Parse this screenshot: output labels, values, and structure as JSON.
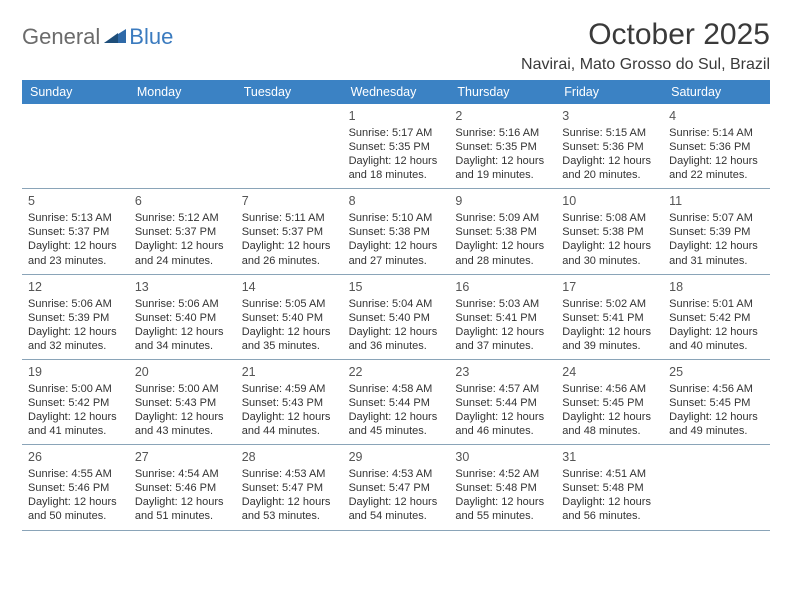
{
  "branding": {
    "logo_part1": "General",
    "logo_part2": "Blue",
    "logo_shape_color": "#2f6aa8"
  },
  "header": {
    "title": "October 2025",
    "location": "Navirai, Mato Grosso do Sul, Brazil"
  },
  "calendar": {
    "day_header_bg": "#3b82c4",
    "day_header_text_color": "#ffffff",
    "border_color": "#8aa4b8",
    "day_names": [
      "Sunday",
      "Monday",
      "Tuesday",
      "Wednesday",
      "Thursday",
      "Friday",
      "Saturday"
    ],
    "weeks": [
      [
        null,
        null,
        null,
        {
          "num": "1",
          "sunrise": "Sunrise: 5:17 AM",
          "sunset": "Sunset: 5:35 PM",
          "daylight": "Daylight: 12 hours and 18 minutes."
        },
        {
          "num": "2",
          "sunrise": "Sunrise: 5:16 AM",
          "sunset": "Sunset: 5:35 PM",
          "daylight": "Daylight: 12 hours and 19 minutes."
        },
        {
          "num": "3",
          "sunrise": "Sunrise: 5:15 AM",
          "sunset": "Sunset: 5:36 PM",
          "daylight": "Daylight: 12 hours and 20 minutes."
        },
        {
          "num": "4",
          "sunrise": "Sunrise: 5:14 AM",
          "sunset": "Sunset: 5:36 PM",
          "daylight": "Daylight: 12 hours and 22 minutes."
        }
      ],
      [
        {
          "num": "5",
          "sunrise": "Sunrise: 5:13 AM",
          "sunset": "Sunset: 5:37 PM",
          "daylight": "Daylight: 12 hours and 23 minutes."
        },
        {
          "num": "6",
          "sunrise": "Sunrise: 5:12 AM",
          "sunset": "Sunset: 5:37 PM",
          "daylight": "Daylight: 12 hours and 24 minutes."
        },
        {
          "num": "7",
          "sunrise": "Sunrise: 5:11 AM",
          "sunset": "Sunset: 5:37 PM",
          "daylight": "Daylight: 12 hours and 26 minutes."
        },
        {
          "num": "8",
          "sunrise": "Sunrise: 5:10 AM",
          "sunset": "Sunset: 5:38 PM",
          "daylight": "Daylight: 12 hours and 27 minutes."
        },
        {
          "num": "9",
          "sunrise": "Sunrise: 5:09 AM",
          "sunset": "Sunset: 5:38 PM",
          "daylight": "Daylight: 12 hours and 28 minutes."
        },
        {
          "num": "10",
          "sunrise": "Sunrise: 5:08 AM",
          "sunset": "Sunset: 5:38 PM",
          "daylight": "Daylight: 12 hours and 30 minutes."
        },
        {
          "num": "11",
          "sunrise": "Sunrise: 5:07 AM",
          "sunset": "Sunset: 5:39 PM",
          "daylight": "Daylight: 12 hours and 31 minutes."
        }
      ],
      [
        {
          "num": "12",
          "sunrise": "Sunrise: 5:06 AM",
          "sunset": "Sunset: 5:39 PM",
          "daylight": "Daylight: 12 hours and 32 minutes."
        },
        {
          "num": "13",
          "sunrise": "Sunrise: 5:06 AM",
          "sunset": "Sunset: 5:40 PM",
          "daylight": "Daylight: 12 hours and 34 minutes."
        },
        {
          "num": "14",
          "sunrise": "Sunrise: 5:05 AM",
          "sunset": "Sunset: 5:40 PM",
          "daylight": "Daylight: 12 hours and 35 minutes."
        },
        {
          "num": "15",
          "sunrise": "Sunrise: 5:04 AM",
          "sunset": "Sunset: 5:40 PM",
          "daylight": "Daylight: 12 hours and 36 minutes."
        },
        {
          "num": "16",
          "sunrise": "Sunrise: 5:03 AM",
          "sunset": "Sunset: 5:41 PM",
          "daylight": "Daylight: 12 hours and 37 minutes."
        },
        {
          "num": "17",
          "sunrise": "Sunrise: 5:02 AM",
          "sunset": "Sunset: 5:41 PM",
          "daylight": "Daylight: 12 hours and 39 minutes."
        },
        {
          "num": "18",
          "sunrise": "Sunrise: 5:01 AM",
          "sunset": "Sunset: 5:42 PM",
          "daylight": "Daylight: 12 hours and 40 minutes."
        }
      ],
      [
        {
          "num": "19",
          "sunrise": "Sunrise: 5:00 AM",
          "sunset": "Sunset: 5:42 PM",
          "daylight": "Daylight: 12 hours and 41 minutes."
        },
        {
          "num": "20",
          "sunrise": "Sunrise: 5:00 AM",
          "sunset": "Sunset: 5:43 PM",
          "daylight": "Daylight: 12 hours and 43 minutes."
        },
        {
          "num": "21",
          "sunrise": "Sunrise: 4:59 AM",
          "sunset": "Sunset: 5:43 PM",
          "daylight": "Daylight: 12 hours and 44 minutes."
        },
        {
          "num": "22",
          "sunrise": "Sunrise: 4:58 AM",
          "sunset": "Sunset: 5:44 PM",
          "daylight": "Daylight: 12 hours and 45 minutes."
        },
        {
          "num": "23",
          "sunrise": "Sunrise: 4:57 AM",
          "sunset": "Sunset: 5:44 PM",
          "daylight": "Daylight: 12 hours and 46 minutes."
        },
        {
          "num": "24",
          "sunrise": "Sunrise: 4:56 AM",
          "sunset": "Sunset: 5:45 PM",
          "daylight": "Daylight: 12 hours and 48 minutes."
        },
        {
          "num": "25",
          "sunrise": "Sunrise: 4:56 AM",
          "sunset": "Sunset: 5:45 PM",
          "daylight": "Daylight: 12 hours and 49 minutes."
        }
      ],
      [
        {
          "num": "26",
          "sunrise": "Sunrise: 4:55 AM",
          "sunset": "Sunset: 5:46 PM",
          "daylight": "Daylight: 12 hours and 50 minutes."
        },
        {
          "num": "27",
          "sunrise": "Sunrise: 4:54 AM",
          "sunset": "Sunset: 5:46 PM",
          "daylight": "Daylight: 12 hours and 51 minutes."
        },
        {
          "num": "28",
          "sunrise": "Sunrise: 4:53 AM",
          "sunset": "Sunset: 5:47 PM",
          "daylight": "Daylight: 12 hours and 53 minutes."
        },
        {
          "num": "29",
          "sunrise": "Sunrise: 4:53 AM",
          "sunset": "Sunset: 5:47 PM",
          "daylight": "Daylight: 12 hours and 54 minutes."
        },
        {
          "num": "30",
          "sunrise": "Sunrise: 4:52 AM",
          "sunset": "Sunset: 5:48 PM",
          "daylight": "Daylight: 12 hours and 55 minutes."
        },
        {
          "num": "31",
          "sunrise": "Sunrise: 4:51 AM",
          "sunset": "Sunset: 5:48 PM",
          "daylight": "Daylight: 12 hours and 56 minutes."
        },
        null
      ]
    ]
  }
}
